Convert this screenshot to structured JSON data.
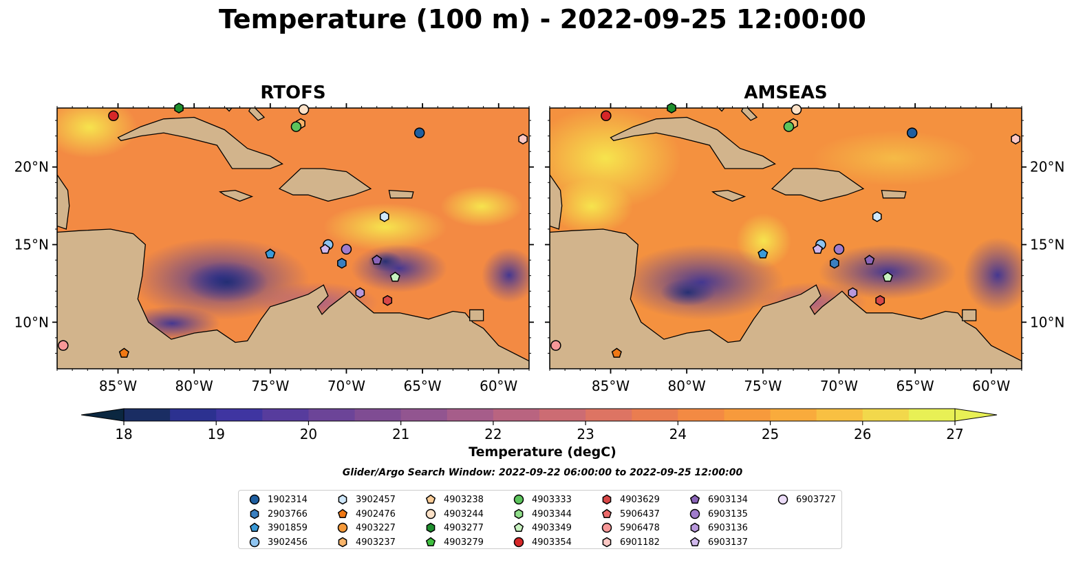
{
  "title": "Temperature (100 m) - 2022-09-25 12:00:00",
  "panels": [
    {
      "title": "RTOFS"
    },
    {
      "title": "AMSEAS"
    }
  ],
  "lon_ticks": [
    "85°W",
    "80°W",
    "75°W",
    "70°W",
    "65°W",
    "60°W"
  ],
  "lat_ticks": [
    "20°N",
    "15°N",
    "10°N"
  ],
  "colorbar": {
    "label": "Temperature (degC)",
    "min": 18,
    "max": 27,
    "tick_labels": [
      "18",
      "19",
      "20",
      "21",
      "22",
      "23",
      "24",
      "25",
      "26",
      "27"
    ],
    "colors": [
      "#0b2740",
      "#1a2d63",
      "#2c3190",
      "#3f35a1",
      "#573c9d",
      "#6c4498",
      "#7f4c93",
      "#925590",
      "#a65d8a",
      "#b96480",
      "#cc6c73",
      "#dd7463",
      "#ea7d50",
      "#f38a43",
      "#f79a3c",
      "#f9ab3c",
      "#f8c042",
      "#f2d84b",
      "#e8f055"
    ],
    "extend_low_color": "#0b2740",
    "extend_high_color": "#e8f055"
  },
  "search_window": "Glider/Argo Search Window: 2022-09-22 06:00:00 to 2022-09-25 12:00:00",
  "colors": {
    "land": "#d2b48c",
    "shallow": "#95b4de",
    "coast": "#000000"
  },
  "legend": {
    "items": [
      {
        "id": "1902314",
        "marker": "circle",
        "color": "#1f5fa0"
      },
      {
        "id": "2903766",
        "marker": "hexagon",
        "color": "#3a7fc0"
      },
      {
        "id": "3901859",
        "marker": "pentagon",
        "color": "#3a9ad8"
      },
      {
        "id": "3902456",
        "marker": "circle",
        "color": "#8ec4f0"
      },
      {
        "id": "3902457",
        "marker": "hexagon",
        "color": "#cfe8fb"
      },
      {
        "id": "4902476",
        "marker": "pentagon",
        "color": "#f07814"
      },
      {
        "id": "4903227",
        "marker": "circle",
        "color": "#f59a3a"
      },
      {
        "id": "4903237",
        "marker": "hexagon",
        "color": "#f8b46a"
      },
      {
        "id": "4903238",
        "marker": "pentagon",
        "color": "#fbcd98"
      },
      {
        "id": "4903244",
        "marker": "circle",
        "color": "#fde2c8"
      },
      {
        "id": "4903277",
        "marker": "hexagon",
        "color": "#1f8f2e"
      },
      {
        "id": "4903279",
        "marker": "pentagon",
        "color": "#3fbf3f"
      },
      {
        "id": "4903333",
        "marker": "circle",
        "color": "#5cc45c"
      },
      {
        "id": "4903344",
        "marker": "hexagon",
        "color": "#90de8a"
      },
      {
        "id": "4903349",
        "marker": "pentagon",
        "color": "#c8f2c0"
      },
      {
        "id": "4903354",
        "marker": "circle",
        "color": "#d62728"
      },
      {
        "id": "4903629",
        "marker": "hexagon",
        "color": "#d84848"
      },
      {
        "id": "5906437",
        "marker": "pentagon",
        "color": "#ec6a6a"
      },
      {
        "id": "5906478",
        "marker": "circle",
        "color": "#f79898"
      },
      {
        "id": "6901182",
        "marker": "hexagon",
        "color": "#fcc8c4"
      },
      {
        "id": "6903134",
        "marker": "pentagon",
        "color": "#8a64b8"
      },
      {
        "id": "6903135",
        "marker": "circle",
        "color": "#a07ccc"
      },
      {
        "id": "6903136",
        "marker": "hexagon",
        "color": "#b898dc"
      },
      {
        "id": "6903137",
        "marker": "pentagon",
        "color": "#d0b8ec"
      },
      {
        "id": "6903727",
        "marker": "circle",
        "color": "#ecdcf8"
      }
    ]
  },
  "floats": [
    {
      "id": "1902314",
      "lon": -65.2,
      "lat": 22.2
    },
    {
      "id": "2903766",
      "lon": -70.3,
      "lat": 13.8
    },
    {
      "id": "3901859",
      "lon": -75.0,
      "lat": 14.4
    },
    {
      "id": "3902456",
      "lon": -71.2,
      "lat": 15.0
    },
    {
      "id": "3902457",
      "lon": -67.5,
      "lat": 16.8
    },
    {
      "id": "4902476",
      "lon": -84.6,
      "lat": 8.0
    },
    {
      "id": "4903237",
      "lon": -73.0,
      "lat": 22.8
    },
    {
      "id": "4903244",
      "lon": -72.8,
      "lat": 23.7
    },
    {
      "id": "4903277",
      "lon": -81.0,
      "lat": 23.8
    },
    {
      "id": "4903333",
      "lon": -73.3,
      "lat": 22.6
    },
    {
      "id": "4903349",
      "lon": -66.8,
      "lat": 12.9
    },
    {
      "id": "4903354",
      "lon": -85.3,
      "lat": 23.3
    },
    {
      "id": "4903629",
      "lon": -67.3,
      "lat": 11.4
    },
    {
      "id": "5906478",
      "lon": -88.6,
      "lat": 8.5
    },
    {
      "id": "6901182",
      "lon": -58.4,
      "lat": 21.8
    },
    {
      "id": "6903134",
      "lon": -68.0,
      "lat": 14.0
    },
    {
      "id": "6903135",
      "lon": -70.0,
      "lat": 14.7
    },
    {
      "id": "6903136",
      "lon": -69.1,
      "lat": 11.9
    },
    {
      "id": "6903137",
      "lon": -71.4,
      "lat": 14.7
    }
  ]
}
